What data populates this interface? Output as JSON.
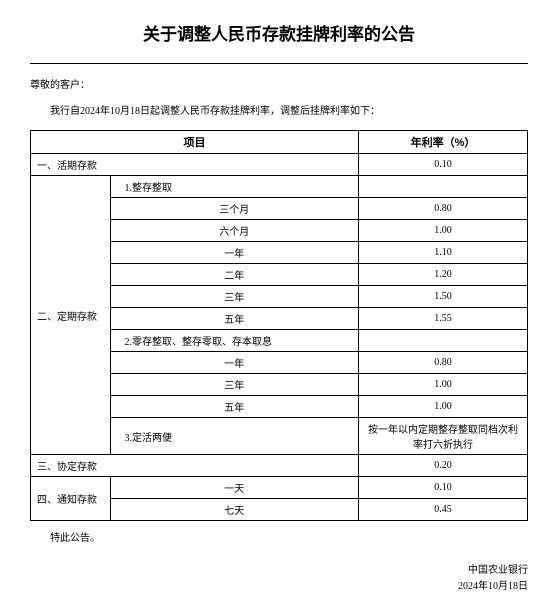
{
  "title": "关于调整人民币存款挂牌利率的公告",
  "greeting": "尊敬的客户：",
  "intro": "我行自2024年10月18日起调整人民币存款挂牌利率，调整后挂牌利率如下：",
  "headers": {
    "item": "项目",
    "rate": "年利率（%）"
  },
  "cat1": {
    "name": "一、活期存款",
    "rate": "0.10"
  },
  "cat2": {
    "name": "二、定期存款",
    "sub1": "1.整存整取",
    "r3m": {
      "label": "三个月",
      "rate": "0.80"
    },
    "r6m": {
      "label": "六个月",
      "rate": "1.00"
    },
    "r1y": {
      "label": "一年",
      "rate": "1.10"
    },
    "r2y": {
      "label": "二年",
      "rate": "1.20"
    },
    "r3y": {
      "label": "三年",
      "rate": "1.50"
    },
    "r5y": {
      "label": "五年",
      "rate": "1.55"
    },
    "sub2": "2.零存整取、整存零取、存本取息",
    "s1y": {
      "label": "一年",
      "rate": "0.80"
    },
    "s3y": {
      "label": "三年",
      "rate": "1.00"
    },
    "s5y": {
      "label": "五年",
      "rate": "1.00"
    },
    "sub3": {
      "label": "3.定活两便",
      "note": "按一年以内定期整存整取同档次利率打六折执行"
    }
  },
  "cat3": {
    "name": "三、协定存款",
    "rate": "0.20"
  },
  "cat4": {
    "name": "四、通知存款",
    "d1": {
      "label": "一天",
      "rate": "0.10"
    },
    "d7": {
      "label": "七天",
      "rate": "0.45"
    }
  },
  "closing": "特此公告。",
  "bank": "中国农业银行",
  "date": "2024年10月18日"
}
